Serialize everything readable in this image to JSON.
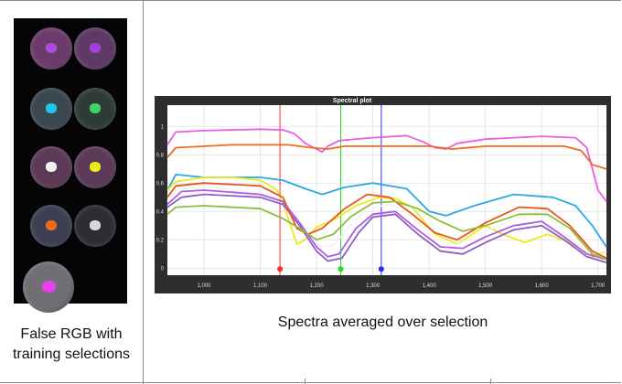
{
  "captions": {
    "left": "False RGB with training selections",
    "right": "Spectra averaged over selection"
  },
  "plot": {
    "title": "Spectral plot"
  },
  "thumbnails": {
    "cells": [
      {
        "name": "cell-1",
        "tint": "#6b3b6b",
        "blob": "#b04be0"
      },
      {
        "name": "cell-2",
        "tint": "#5e3a66",
        "blob": "#a33ed8"
      },
      {
        "name": "cell-3",
        "tint": "#3b4750",
        "blob": "#1ec6ee"
      },
      {
        "name": "cell-4",
        "tint": "#2f3b35",
        "blob": "#3fd26b"
      },
      {
        "name": "cell-5",
        "tint": "#5c3a55",
        "blob": "#f2f2f2"
      },
      {
        "name": "cell-6",
        "tint": "#5b3a58",
        "blob": "#ecea1a"
      },
      {
        "name": "cell-7",
        "tint": "#3c3f52",
        "blob": "#f26a18"
      },
      {
        "name": "cell-8",
        "tint": "#2b2d33",
        "blob": "#d9d9d9"
      },
      {
        "name": "cell-9",
        "tint": "#6f6f74",
        "blob": "#e642e8"
      }
    ]
  },
  "chart_data": {
    "type": "line",
    "title": "Spectral plot",
    "xlabel": "",
    "ylabel": "",
    "xlim": [
      935,
      1715
    ],
    "ylim": [
      -0.05,
      1.15
    ],
    "xticks": [
      1000,
      1100,
      1200,
      1300,
      1400,
      1500,
      1600,
      1700
    ],
    "xtick_labels": [
      "1,000",
      "1,100",
      "1,200",
      "1,300",
      "1,400",
      "1,500",
      "1,600",
      "1,700"
    ],
    "yticks": [
      0,
      0.2,
      0.4,
      0.6,
      0.8,
      1
    ],
    "ytick_labels": [
      "0",
      "0.2",
      "0.4",
      "0.6",
      "0.8",
      "1"
    ],
    "grid": true,
    "markers": [
      {
        "x": 1135,
        "y": 0,
        "color": "#ff2a2a"
      },
      {
        "x": 1243,
        "y": 0,
        "color": "#22dd22"
      },
      {
        "x": 1315,
        "y": 0,
        "color": "#2a2aff"
      }
    ],
    "series": [
      {
        "color": "#e95fe2",
        "points": [
          [
            935,
            0.87
          ],
          [
            950,
            0.96
          ],
          [
            1000,
            0.97
          ],
          [
            1100,
            0.98
          ],
          [
            1140,
            0.975
          ],
          [
            1160,
            0.95
          ],
          [
            1180,
            0.88
          ],
          [
            1195,
            0.85
          ],
          [
            1210,
            0.82
          ],
          [
            1220,
            0.86
          ],
          [
            1240,
            0.9
          ],
          [
            1300,
            0.92
          ],
          [
            1360,
            0.935
          ],
          [
            1390,
            0.89
          ],
          [
            1410,
            0.85
          ],
          [
            1430,
            0.84
          ],
          [
            1450,
            0.88
          ],
          [
            1500,
            0.91
          ],
          [
            1600,
            0.93
          ],
          [
            1660,
            0.92
          ],
          [
            1680,
            0.85
          ],
          [
            1700,
            0.55
          ],
          [
            1715,
            0.47
          ]
        ]
      },
      {
        "color": "#ef6a1e",
        "points": [
          [
            935,
            0.78
          ],
          [
            950,
            0.85
          ],
          [
            1050,
            0.87
          ],
          [
            1150,
            0.87
          ],
          [
            1190,
            0.85
          ],
          [
            1220,
            0.84
          ],
          [
            1250,
            0.86
          ],
          [
            1400,
            0.86
          ],
          [
            1440,
            0.84
          ],
          [
            1500,
            0.86
          ],
          [
            1640,
            0.86
          ],
          [
            1670,
            0.83
          ],
          [
            1690,
            0.73
          ],
          [
            1715,
            0.7
          ]
        ]
      },
      {
        "color": "#2aa8e8",
        "points": [
          [
            935,
            0.55
          ],
          [
            950,
            0.66
          ],
          [
            1000,
            0.64
          ],
          [
            1100,
            0.64
          ],
          [
            1140,
            0.62
          ],
          [
            1180,
            0.56
          ],
          [
            1210,
            0.52
          ],
          [
            1250,
            0.57
          ],
          [
            1300,
            0.6
          ],
          [
            1360,
            0.56
          ],
          [
            1400,
            0.4
          ],
          [
            1430,
            0.37
          ],
          [
            1480,
            0.44
          ],
          [
            1550,
            0.52
          ],
          [
            1620,
            0.5
          ],
          [
            1660,
            0.44
          ],
          [
            1690,
            0.3
          ],
          [
            1715,
            0.15
          ]
        ]
      },
      {
        "color": "#ecea1a",
        "points": [
          [
            935,
            0.55
          ],
          [
            950,
            0.61
          ],
          [
            1000,
            0.64
          ],
          [
            1050,
            0.64
          ],
          [
            1100,
            0.62
          ],
          [
            1130,
            0.55
          ],
          [
            1150,
            0.35
          ],
          [
            1165,
            0.17
          ],
          [
            1180,
            0.2
          ],
          [
            1200,
            0.29
          ],
          [
            1230,
            0.34
          ],
          [
            1270,
            0.44
          ],
          [
            1310,
            0.5
          ],
          [
            1340,
            0.49
          ],
          [
            1370,
            0.43
          ],
          [
            1410,
            0.24
          ],
          [
            1450,
            0.17
          ],
          [
            1500,
            0.3
          ],
          [
            1530,
            0.24
          ],
          [
            1570,
            0.18
          ],
          [
            1610,
            0.24
          ],
          [
            1650,
            0.18
          ],
          [
            1690,
            0.08
          ],
          [
            1715,
            0.12
          ]
        ]
      },
      {
        "color": "#f4f4f4",
        "points": [
          [
            935,
            0.47
          ],
          [
            950,
            0.55
          ],
          [
            1000,
            0.57
          ],
          [
            1050,
            0.55
          ],
          [
            1100,
            0.53
          ],
          [
            1130,
            0.48
          ],
          [
            1160,
            0.35
          ],
          [
            1190,
            0.2
          ],
          [
            1210,
            0.15
          ],
          [
            1230,
            0.16
          ],
          [
            1260,
            0.3
          ],
          [
            1290,
            0.42
          ],
          [
            1330,
            0.45
          ],
          [
            1360,
            0.4
          ],
          [
            1400,
            0.24
          ],
          [
            1440,
            0.15
          ],
          [
            1500,
            0.26
          ],
          [
            1550,
            0.34
          ],
          [
            1580,
            0.4
          ],
          [
            1610,
            0.37
          ],
          [
            1640,
            0.25
          ],
          [
            1670,
            0.15
          ],
          [
            1700,
            0.08
          ],
          [
            1715,
            0.12
          ]
        ]
      },
      {
        "color": "#b05ce0",
        "points": [
          [
            935,
            0.45
          ],
          [
            960,
            0.54
          ],
          [
            1000,
            0.55
          ],
          [
            1100,
            0.52
          ],
          [
            1140,
            0.47
          ],
          [
            1170,
            0.32
          ],
          [
            1200,
            0.15
          ],
          [
            1220,
            0.08
          ],
          [
            1240,
            0.1
          ],
          [
            1270,
            0.28
          ],
          [
            1300,
            0.38
          ],
          [
            1340,
            0.4
          ],
          [
            1380,
            0.27
          ],
          [
            1420,
            0.15
          ],
          [
            1460,
            0.14
          ],
          [
            1500,
            0.22
          ],
          [
            1550,
            0.3
          ],
          [
            1600,
            0.33
          ],
          [
            1640,
            0.22
          ],
          [
            1680,
            0.1
          ],
          [
            1715,
            0.06
          ]
        ]
      },
      {
        "color": "#8a5fc8",
        "points": [
          [
            935,
            0.43
          ],
          [
            960,
            0.5
          ],
          [
            1000,
            0.52
          ],
          [
            1100,
            0.5
          ],
          [
            1140,
            0.45
          ],
          [
            1170,
            0.3
          ],
          [
            1200,
            0.12
          ],
          [
            1220,
            0.05
          ],
          [
            1245,
            0.07
          ],
          [
            1275,
            0.25
          ],
          [
            1300,
            0.36
          ],
          [
            1340,
            0.38
          ],
          [
            1380,
            0.24
          ],
          [
            1420,
            0.12
          ],
          [
            1460,
            0.1
          ],
          [
            1500,
            0.18
          ],
          [
            1550,
            0.27
          ],
          [
            1600,
            0.3
          ],
          [
            1640,
            0.2
          ],
          [
            1680,
            0.08
          ],
          [
            1715,
            0.04
          ]
        ]
      },
      {
        "color": "#e8561e",
        "points": [
          [
            935,
            0.5
          ],
          [
            950,
            0.58
          ],
          [
            1000,
            0.6
          ],
          [
            1100,
            0.58
          ],
          [
            1140,
            0.5
          ],
          [
            1165,
            0.28
          ],
          [
            1185,
            0.24
          ],
          [
            1210,
            0.28
          ],
          [
            1250,
            0.42
          ],
          [
            1290,
            0.52
          ],
          [
            1330,
            0.5
          ],
          [
            1370,
            0.38
          ],
          [
            1410,
            0.25
          ],
          [
            1450,
            0.2
          ],
          [
            1500,
            0.32
          ],
          [
            1560,
            0.43
          ],
          [
            1610,
            0.42
          ],
          [
            1650,
            0.3
          ],
          [
            1690,
            0.12
          ],
          [
            1715,
            0.07
          ]
        ]
      },
      {
        "color": "#8fbc3c",
        "points": [
          [
            935,
            0.38
          ],
          [
            950,
            0.43
          ],
          [
            1000,
            0.44
          ],
          [
            1100,
            0.42
          ],
          [
            1140,
            0.35
          ],
          [
            1170,
            0.28
          ],
          [
            1200,
            0.2
          ],
          [
            1230,
            0.24
          ],
          [
            1260,
            0.36
          ],
          [
            1300,
            0.46
          ],
          [
            1340,
            0.47
          ],
          [
            1380,
            0.42
          ],
          [
            1420,
            0.33
          ],
          [
            1460,
            0.26
          ],
          [
            1500,
            0.3
          ],
          [
            1560,
            0.38
          ],
          [
            1610,
            0.38
          ],
          [
            1650,
            0.28
          ],
          [
            1690,
            0.1
          ],
          [
            1715,
            0.06
          ]
        ]
      }
    ]
  }
}
